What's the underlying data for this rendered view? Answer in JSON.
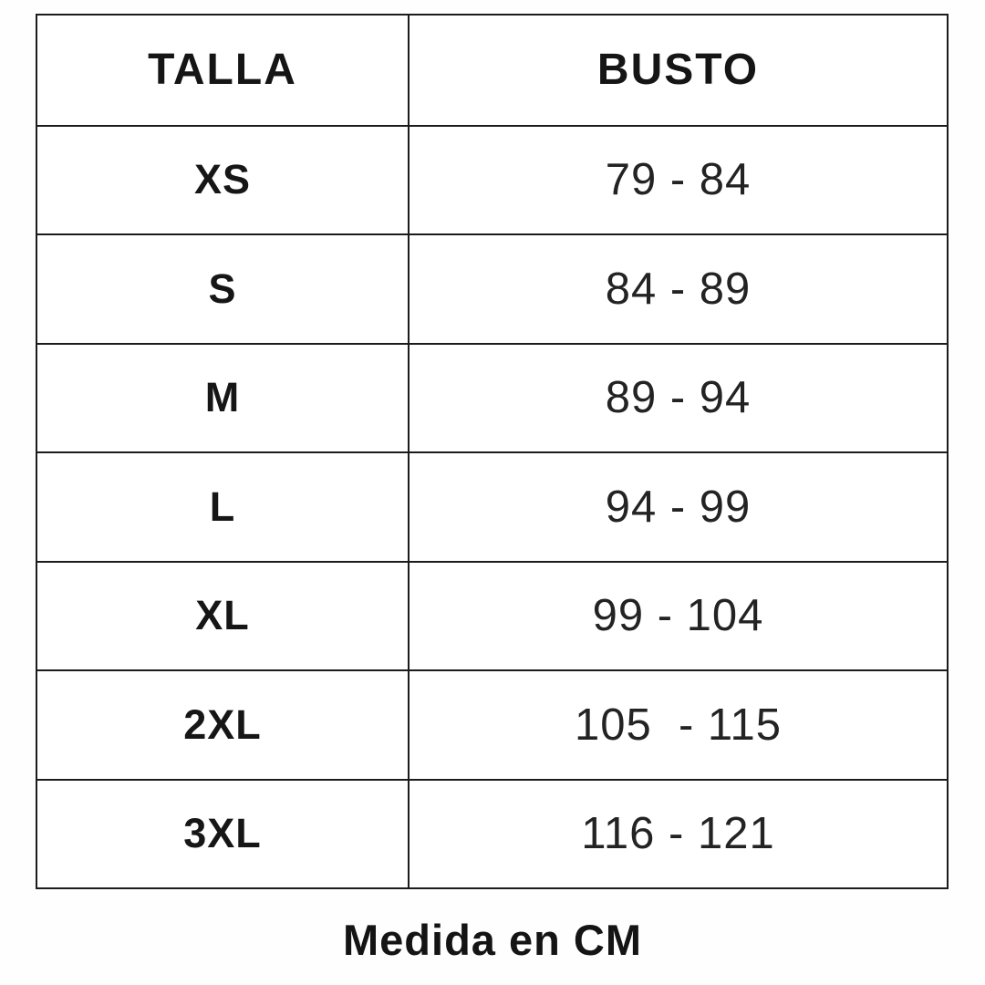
{
  "chart_data": {
    "type": "table",
    "columns": [
      "TALLA",
      "BUSTO"
    ],
    "rows": [
      {
        "size": "XS",
        "busto": "79 - 84"
      },
      {
        "size": "S",
        "busto": "84 - 89"
      },
      {
        "size": "M",
        "busto": "89 - 94"
      },
      {
        "size": "L",
        "busto": "94 - 99"
      },
      {
        "size": "XL",
        "busto": "99 - 104"
      },
      {
        "size": "2XL",
        "busto": "105  - 115"
      },
      {
        "size": "3XL",
        "busto": "116 - 121"
      }
    ],
    "layout": {
      "grid": "on",
      "header_row": true,
      "columns_count": 2,
      "rows_count": 8
    }
  },
  "footer": {
    "note": "Medida en CM"
  },
  "colors": {
    "border": "#1c1c1c",
    "text": "#1a1a1a",
    "background": "#ffffff"
  }
}
